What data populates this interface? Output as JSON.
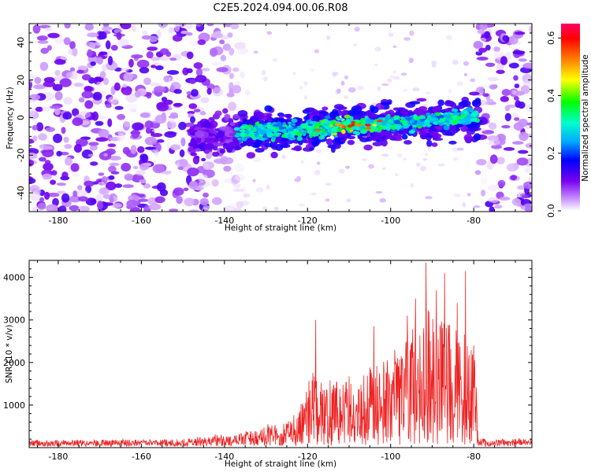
{
  "title": "C2E5.2024.094.00.06.R08",
  "chart_data": [
    {
      "type": "heatmap",
      "xlabel": "Height of straight line (km)",
      "ylabel": "Frequency (Hz)",
      "xlim": [
        -187,
        -66
      ],
      "ylim": [
        -50,
        50
      ],
      "x_ticks": [
        -180,
        -160,
        -140,
        -120,
        -100,
        -80
      ],
      "y_ticks": [
        -40,
        -20,
        0,
        20,
        40
      ],
      "colorbar": {
        "label": "Normalized spectral amplitude",
        "range": [
          0,
          0.65
        ],
        "ticks": [
          0.0,
          0.2,
          0.4,
          0.6
        ],
        "colors": [
          "#ffffff",
          "#cc99ff",
          "#7700ee",
          "#0000ff",
          "#00aaff",
          "#00ffcc",
          "#00ff00",
          "#ffff00",
          "#ff8800",
          "#ff0000",
          "#ff0066"
        ]
      },
      "noise_regions_km": [
        [
          -187,
          -135
        ],
        [
          -79,
          -66
        ]
      ],
      "signal_band": {
        "x_range_km": [
          -148,
          -79
        ],
        "center_freq_start_hz": -10,
        "center_freq_end_hz": 0,
        "half_width_hz": 6,
        "peak_amplitude": 0.62,
        "peak_location_km": -110
      }
    },
    {
      "type": "line",
      "xlabel": "Height of straight line (km)",
      "ylabel": "SNR (10 * v/v)",
      "xlim": [
        -187,
        -66
      ],
      "ylim": [
        0,
        4400
      ],
      "x_ticks": [
        -180,
        -160,
        -140,
        -120,
        -100,
        -80
      ],
      "y_ticks": [
        1000,
        2000,
        3000,
        4000
      ],
      "color": "#ee2222",
      "envelope": [
        {
          "x": -187,
          "y": 160
        },
        {
          "x": -170,
          "y": 170
        },
        {
          "x": -150,
          "y": 180
        },
        {
          "x": -142,
          "y": 300
        },
        {
          "x": -138,
          "y": 260
        },
        {
          "x": -133,
          "y": 420
        },
        {
          "x": -130,
          "y": 600
        },
        {
          "x": -127,
          "y": 500
        },
        {
          "x": -124,
          "y": 620
        },
        {
          "x": -121,
          "y": 1100
        },
        {
          "x": -119,
          "y": 1800
        },
        {
          "x": -117,
          "y": 1500
        },
        {
          "x": -113,
          "y": 1600
        },
        {
          "x": -108,
          "y": 1750
        },
        {
          "x": -104,
          "y": 1900
        },
        {
          "x": -100,
          "y": 2200
        },
        {
          "x": -97,
          "y": 2500
        },
        {
          "x": -94,
          "y": 2900
        },
        {
          "x": -92,
          "y": 3200
        },
        {
          "x": -90,
          "y": 3200
        },
        {
          "x": -88,
          "y": 3000
        },
        {
          "x": -86,
          "y": 3000
        },
        {
          "x": -83,
          "y": 2900
        },
        {
          "x": -81,
          "y": 2600
        },
        {
          "x": -79.5,
          "y": 2000
        },
        {
          "x": -79,
          "y": 200
        },
        {
          "x": -66,
          "y": 190
        }
      ],
      "peaks": [
        {
          "x": -118,
          "y": 3000
        },
        {
          "x": -104,
          "y": 2850
        },
        {
          "x": -96,
          "y": 3100
        },
        {
          "x": -94,
          "y": 3500
        },
        {
          "x": -91.5,
          "y": 4350
        },
        {
          "x": -89,
          "y": 3700
        },
        {
          "x": -87,
          "y": 4100
        },
        {
          "x": -84,
          "y": 3400
        },
        {
          "x": -82,
          "y": 4150
        },
        {
          "x": -80,
          "y": 2400
        }
      ]
    }
  ]
}
